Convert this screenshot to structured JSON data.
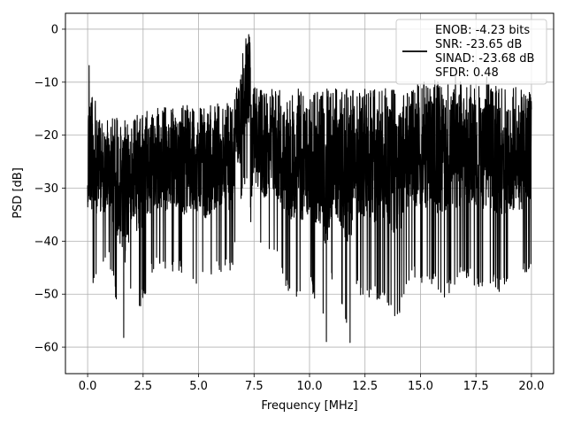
{
  "chart_data": {
    "type": "line",
    "xlabel": "Frequency [MHz]",
    "ylabel": "PSD [dB]",
    "xlim": [
      -1.0,
      21.0
    ],
    "ylim": [
      -65.0,
      3.0
    ],
    "xticks": [
      0.0,
      2.5,
      5.0,
      7.5,
      10.0,
      12.5,
      15.0,
      17.5,
      20.0
    ],
    "xtick_labels": [
      "0.0",
      "2.5",
      "5.0",
      "7.5",
      "10.0",
      "12.5",
      "15.0",
      "17.5",
      "20.0"
    ],
    "yticks": [
      0,
      -10,
      -20,
      -30,
      -40,
      -50,
      -60
    ],
    "ytick_labels": [
      "0",
      "−10",
      "−20",
      "−30",
      "−40",
      "−50",
      "−60"
    ],
    "grid": true,
    "legend_position": "top-right",
    "line_color": "#000000",
    "legend_lines": [
      "ENOB: -4.23 bits",
      "SNR: -23.65 dB",
      "SINAD: -23.68 dB",
      "SFDR: 0.48"
    ],
    "series": [
      {
        "sampled_envelope": {
          "x": [
            0.0,
            0.05,
            0.5,
            1.0,
            1.7,
            2.0,
            2.3,
            3.0,
            3.6,
            4.0,
            4.5,
            5.0,
            5.5,
            6.0,
            6.5,
            6.9,
            7.0,
            7.1,
            7.2,
            7.3,
            7.4,
            7.5,
            8.0,
            8.5,
            9.0,
            9.6,
            10.0,
            10.5,
            10.8,
            11.0,
            11.5,
            11.8,
            12.0,
            12.5,
            13.0,
            13.5,
            14.0,
            14.5,
            15.0,
            15.5,
            16.0,
            16.5,
            17.0,
            17.5,
            18.0,
            18.5,
            19.0,
            19.5,
            20.0
          ],
          "upper": [
            -27.0,
            -5.5,
            -17.0,
            -16.5,
            -17.0,
            -16.0,
            -16.0,
            -15.0,
            -14.5,
            -15.0,
            -14.0,
            -15.0,
            -14.5,
            -13.5,
            -14.0,
            -8.0,
            -3.0,
            -1.0,
            -1.5,
            0.0,
            -6.0,
            -11.0,
            -11.5,
            -11.0,
            -12.0,
            -11.0,
            -12.0,
            -11.5,
            -11.0,
            -11.0,
            -11.5,
            -11.0,
            -11.0,
            -11.0,
            -11.5,
            -11.0,
            -11.5,
            -11.0,
            -10.0,
            -9.5,
            -9.0,
            -8.0,
            -9.0,
            -9.5,
            -9.0,
            -11.0,
            -11.0,
            -11.0,
            -12.0
          ],
          "lower": [
            -37.0,
            -53.0,
            -45.0,
            -45.0,
            -61.0,
            -47.0,
            -54.0,
            -45.0,
            -47.0,
            -45.0,
            -48.0,
            -48.0,
            -48.0,
            -46.0,
            -46.0,
            -34.0,
            -30.0,
            -29.0,
            -28.0,
            -27.0,
            -49.0,
            -40.0,
            -44.0,
            -44.0,
            -50.0,
            -51.0,
            -49.0,
            -53.0,
            -62.0,
            -48.0,
            -53.0,
            -61.0,
            -48.0,
            -52.0,
            -51.0,
            -52.0,
            -56.0,
            -47.0,
            -48.0,
            -48.0,
            -51.0,
            -49.0,
            -47.0,
            -49.0,
            -48.0,
            -50.0,
            -48.0,
            -48.0,
            -45.0
          ]
        }
      }
    ]
  }
}
